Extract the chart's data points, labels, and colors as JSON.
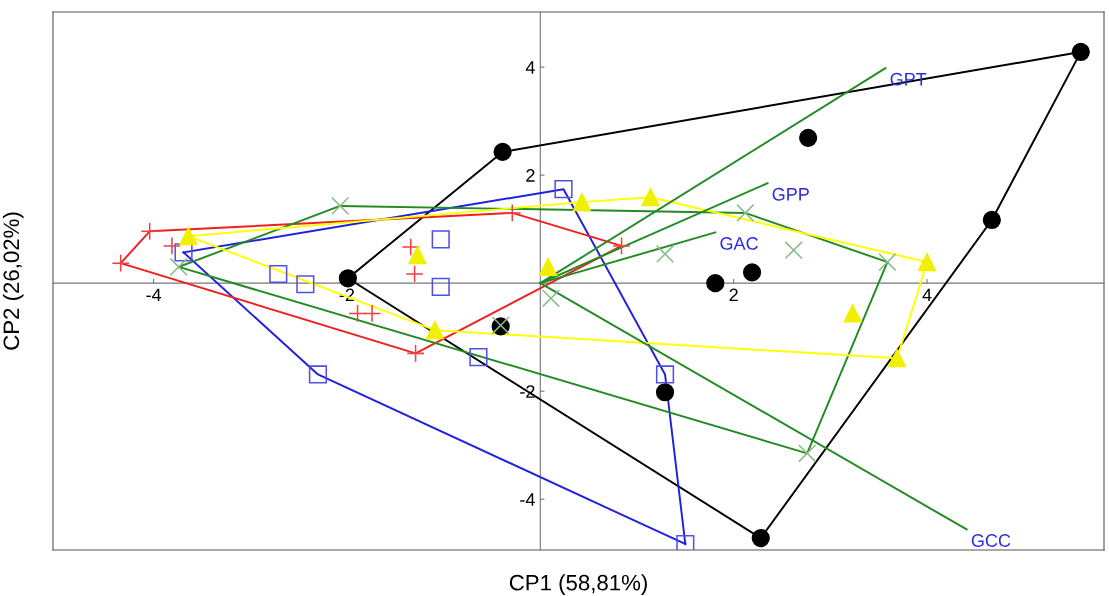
{
  "chart_data": {
    "type": "scatter",
    "xlabel": "CP1 (58,81%)",
    "ylabel": "CP2 (26,02%)",
    "xlim": [
      -5.04,
      5.83
    ],
    "ylim": [
      -4.94,
      5.02
    ],
    "xticks": [
      -4,
      -2,
      2,
      4
    ],
    "yticks": [
      -4,
      -2,
      2,
      4
    ],
    "series": [
      {
        "type": "line",
        "color": "#000000",
        "x": [
          -1.99,
          -0.39,
          5.59
        ],
        "values": [
          0.09,
          2.43,
          4.28
        ]
      },
      {
        "type": "line",
        "color": "#000000",
        "x": [
          -1.99,
          2.28,
          4.67,
          5.59
        ],
        "values": [
          0.09,
          -4.72,
          1.17,
          4.28
        ]
      },
      {
        "type": "line",
        "color": "#2020e0",
        "x": [
          -3.69,
          0.24,
          1.29,
          1.5
        ],
        "values": [
          0.57,
          1.74,
          -1.69,
          -4.83
        ]
      },
      {
        "type": "line",
        "color": "#2020e0",
        "x": [
          -3.69,
          -2.3,
          1.5
        ],
        "values": [
          0.57,
          -1.69,
          -4.83
        ]
      },
      {
        "type": "line",
        "color": "#ee2020",
        "x": [
          -4.34,
          -4.04,
          -0.29,
          0.84
        ],
        "values": [
          0.37,
          0.96,
          1.3,
          0.69
        ]
      },
      {
        "type": "line",
        "color": "#ee2020",
        "x": [
          -4.34,
          -1.29,
          0.84
        ],
        "values": [
          0.37,
          -1.3,
          0.69
        ]
      },
      {
        "type": "line",
        "color": "#228b22",
        "x": [
          -3.74,
          -2.07,
          2.12,
          3.59
        ],
        "values": [
          0.3,
          1.43,
          1.3,
          0.39
        ]
      },
      {
        "type": "line",
        "color": "#228b22",
        "x": [
          -3.74,
          2.76,
          3.59
        ],
        "values": [
          0.3,
          -3.15,
          0.39
        ]
      },
      {
        "type": "line",
        "color": "#ffff00",
        "x": [
          -3.64,
          0.43,
          1.14,
          4.0
        ],
        "values": [
          0.87,
          1.5,
          1.59,
          0.39
        ]
      },
      {
        "type": "line",
        "color": "#ffff00",
        "x": [
          -3.64,
          -1.09,
          3.69,
          4.0
        ],
        "values": [
          0.87,
          -0.87,
          -1.39,
          0.39
        ]
      },
      {
        "type": "line",
        "color": "#228b22",
        "x": [
          0,
          3.57
        ],
        "values": [
          0,
          3.98
        ]
      },
      {
        "type": "line",
        "color": "#228b22",
        "x": [
          0,
          2.35
        ],
        "values": [
          0,
          1.85
        ]
      },
      {
        "type": "line",
        "color": "#228b22",
        "x": [
          0,
          1.81
        ],
        "values": [
          0,
          0.94
        ]
      },
      {
        "type": "line",
        "color": "#228b22",
        "x": [
          0,
          4.41
        ],
        "values": [
          0,
          -4.56
        ]
      },
      {
        "marker": "circle",
        "color": "#000000",
        "x": [
          5.59,
          -0.39,
          2.77,
          4.67,
          -1.99,
          1.81,
          2.19,
          -0.41,
          1.29,
          2.28
        ],
        "values": [
          4.28,
          2.43,
          2.69,
          1.17,
          0.09,
          0.0,
          0.2,
          -0.8,
          -2.02,
          -4.72
        ]
      },
      {
        "marker": "square",
        "color": "#5050e8",
        "x": [
          0.24,
          -3.69,
          -1.03,
          -2.71,
          -2.43,
          -1.03,
          -0.64,
          -2.3,
          1.29,
          1.5
        ],
        "values": [
          1.74,
          0.57,
          0.81,
          0.17,
          -0.02,
          -0.07,
          -1.37,
          -1.69,
          -1.69,
          -4.83
        ]
      },
      {
        "marker": "plus",
        "color": "#f04040",
        "x": [
          -4.04,
          -4.34,
          -3.81,
          -1.34,
          -1.3,
          -1.89,
          -1.74,
          -1.29,
          -0.29,
          0.84
        ],
        "values": [
          0.96,
          0.37,
          0.69,
          0.67,
          0.17,
          -0.56,
          -0.56,
          -1.3,
          1.3,
          0.69
        ]
      },
      {
        "marker": "cross",
        "color": "#88bb88",
        "x": [
          -2.07,
          -3.74,
          1.29,
          0.11,
          -0.41,
          2.12,
          2.62,
          3.59,
          2.76
        ],
        "values": [
          1.43,
          0.3,
          0.54,
          -0.28,
          -0.78,
          1.3,
          0.61,
          0.39,
          -3.15
        ]
      },
      {
        "marker": "triangle",
        "color": "#f0f000",
        "x": [
          -3.64,
          -1.27,
          0.08,
          0.43,
          1.14,
          -1.09,
          3.23,
          4.0,
          3.69
        ],
        "values": [
          0.87,
          0.52,
          0.3,
          1.5,
          1.59,
          -0.87,
          -0.56,
          0.39,
          -1.39
        ]
      }
    ],
    "annotations": [
      {
        "text": "GPT",
        "x": 3.57,
        "y": 3.98
      },
      {
        "text": "GPP",
        "x": 2.35,
        "y": 1.85
      },
      {
        "text": "GAC",
        "x": 1.81,
        "y": 0.94
      },
      {
        "text": "GCC",
        "x": 4.41,
        "y": -4.56
      }
    ]
  }
}
